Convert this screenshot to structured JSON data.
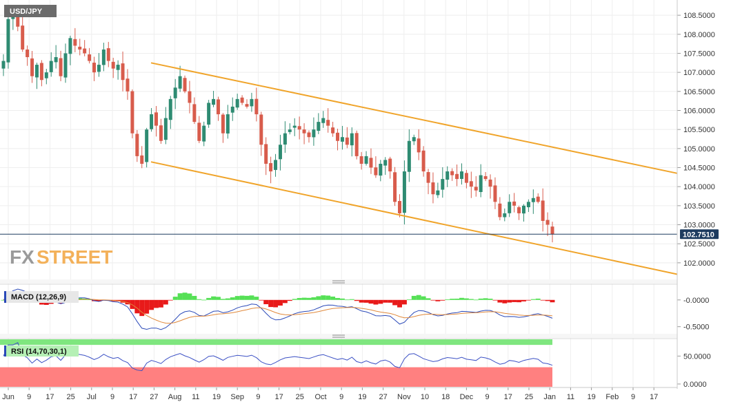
{
  "chart_data": [
    {
      "type": "candlestick",
      "symbol": "USD/JPY",
      "last_price": "102.7510",
      "y_ticks": [
        "108.5000",
        "108.0000",
        "107.5000",
        "107.0000",
        "106.5000",
        "106.0000",
        "105.5000",
        "105.0000",
        "104.5000",
        "104.0000",
        "103.5000",
        "103.0000",
        "102.5000",
        "102.0000"
      ],
      "ylim": [
        101.6,
        108.9
      ],
      "x_ticks": [
        "Jun",
        "9",
        "17",
        "25",
        "Jul",
        "9",
        "17",
        "27",
        "Aug",
        "11",
        "19",
        "Sep",
        "9",
        "17",
        "25",
        "Oct",
        "9",
        "19",
        "27",
        "Nov",
        "10",
        "18",
        "Dec",
        "9",
        "17",
        "25",
        "Jan",
        "11",
        "19",
        "Feb",
        "9",
        "17"
      ],
      "closes": [
        107.3,
        108.4,
        108.6,
        108.2,
        107.6,
        107.4,
        106.9,
        107.2,
        106.8,
        107.0,
        107.3,
        107.4,
        106.9,
        107.5,
        107.9,
        107.7,
        107.6,
        107.5,
        107.3,
        107.0,
        107.2,
        107.6,
        107.3,
        107.1,
        107.2,
        106.8,
        106.5,
        105.4,
        104.8,
        104.6,
        105.5,
        105.9,
        105.6,
        105.2,
        105.8,
        106.3,
        106.6,
        106.9,
        106.5,
        106.2,
        105.7,
        105.2,
        105.6,
        106.2,
        106.3,
        105.9,
        105.4,
        105.9,
        106.1,
        106.3,
        106.2,
        106.1,
        106.3,
        105.9,
        105.1,
        104.6,
        104.4,
        104.7,
        105.1,
        105.4,
        105.5,
        105.6,
        105.5,
        105.4,
        105.3,
        105.5,
        105.7,
        105.8,
        105.6,
        105.4,
        105.2,
        105.3,
        105.1,
        105.4,
        104.8,
        104.6,
        104.8,
        104.5,
        104.3,
        104.6,
        104.7,
        104.4,
        103.6,
        103.3,
        104.4,
        105.2,
        105.3,
        104.9,
        104.4,
        104.1,
        103.8,
        103.9,
        104.2,
        104.4,
        104.3,
        104.2,
        104.4,
        104.1,
        104.0,
        103.9,
        104.3,
        104.2,
        104.0,
        103.6,
        103.2,
        103.3,
        103.6,
        103.5,
        103.3,
        103.5,
        103.6,
        103.7,
        103.6,
        103.1,
        103.0,
        102.75
      ],
      "macd_indicator": {
        "label": "MACD (12,26,9)",
        "y_ticks": [
          "-0.0000",
          "-0.5000"
        ],
        "ylim": [
          -0.62,
          0.28
        ]
      },
      "rsi_indicator": {
        "label": "RSI (14,70,30,1)",
        "y_ticks": [
          "50.0000",
          "0.0000"
        ],
        "ylim": [
          -5,
          80
        ],
        "overbought": 70,
        "oversold": 30
      }
    }
  ],
  "brand": {
    "logo_fx": "FX",
    "logo_street": "STREET"
  },
  "colors": {
    "up": "#2e8b72",
    "down": "#d85c4c",
    "channel": "#f0a42a",
    "macd_line": "#2a49b8",
    "signal_line": "#e0883a",
    "hist_pos": "#55e055",
    "hist_neg": "#e81a1a",
    "rsi_line": "#3a4fc4",
    "overbought_zone": "#7fe67f",
    "oversold_zone": "#ff8080",
    "price_tag_bg": "#1d3b5f"
  }
}
